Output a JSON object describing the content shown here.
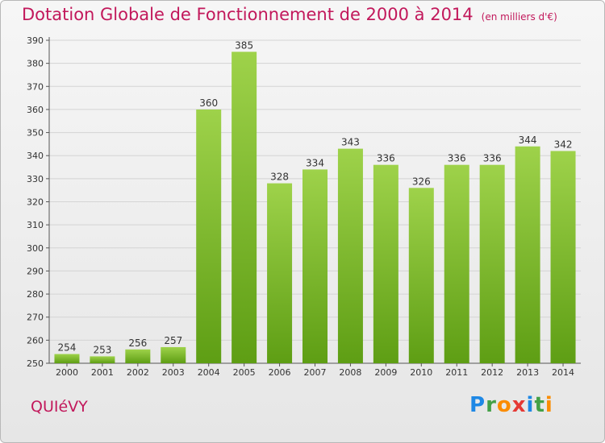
{
  "title": "Dotation Globale de Fonctionnement de 2000 à 2014",
  "subtitle": "(en milliers d'€)",
  "commune": "QUIéVY",
  "logo": {
    "letters": [
      "P",
      "r",
      "o",
      "x",
      "i",
      "t",
      "i"
    ],
    "colors": [
      "#1e88e5",
      "#43a047",
      "#fb8c00",
      "#e53935",
      "#1e88e5",
      "#43a047",
      "#fb8c00"
    ]
  },
  "chart_data": {
    "type": "bar",
    "categories": [
      "2000",
      "2001",
      "2002",
      "2003",
      "2004",
      "2005",
      "2006",
      "2007",
      "2008",
      "2009",
      "2010",
      "2011",
      "2012",
      "2013",
      "2014"
    ],
    "values": [
      254,
      253,
      256,
      257,
      360,
      385,
      328,
      334,
      343,
      336,
      326,
      336,
      336,
      344,
      342
    ],
    "ylim": [
      250,
      390
    ],
    "yticks": [
      250,
      260,
      270,
      280,
      290,
      300,
      310,
      320,
      330,
      340,
      350,
      360,
      370,
      380,
      390
    ],
    "grid": true,
    "bar_color_top": "#9ed24a",
    "bar_color_bottom": "#5e9e14"
  }
}
